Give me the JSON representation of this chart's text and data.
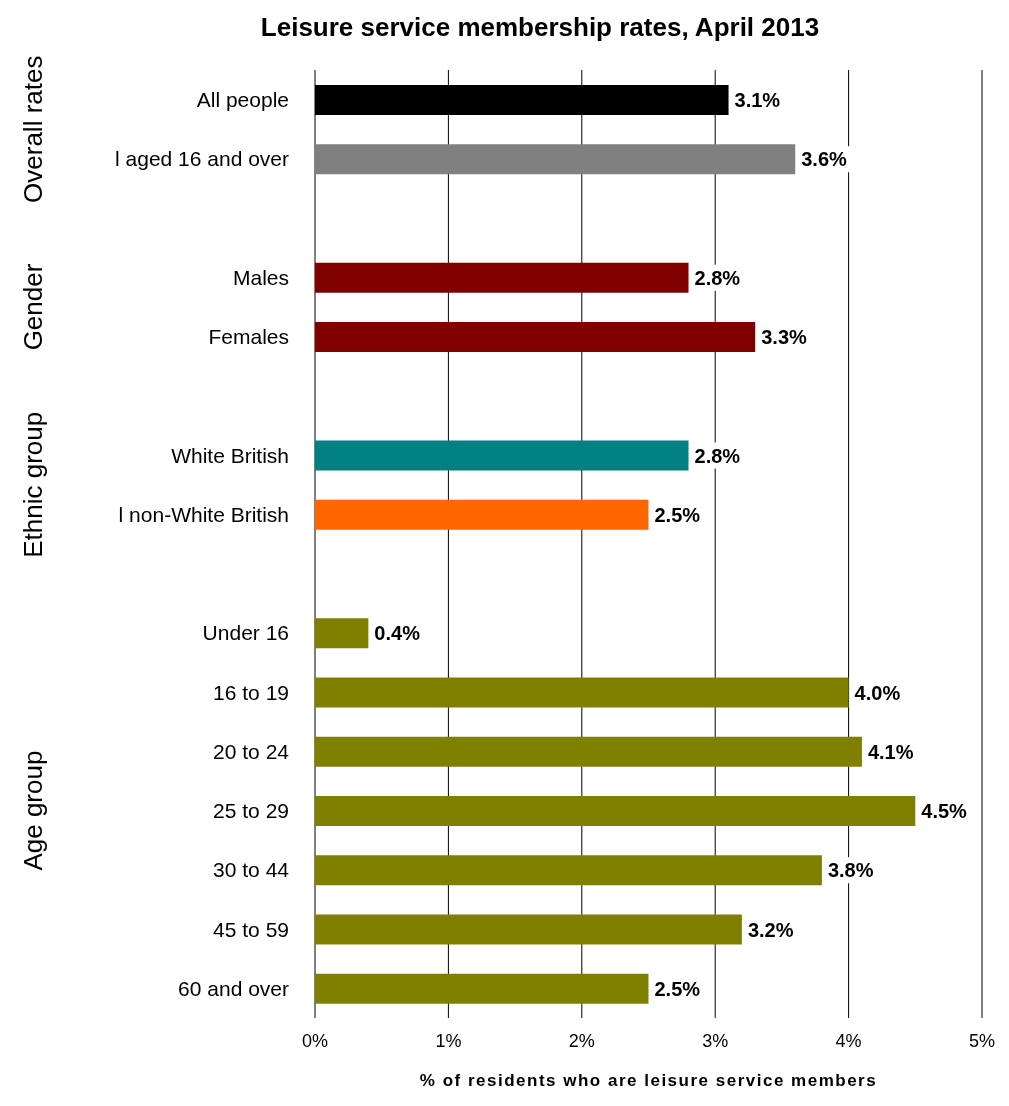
{
  "chart_data": {
    "type": "bar",
    "orientation": "horizontal",
    "title": "Leisure service membership rates, April 2013",
    "xlabel": "% of residents who are leisure service members",
    "categories": [
      "All people",
      "l aged 16 and over",
      null,
      "Males",
      "Females",
      null,
      "White British",
      "l non-White British",
      null,
      "Under 16",
      "16 to 19",
      "20 to 24",
      "25 to 29",
      "30 to 44",
      "45 to 59",
      "60 and over"
    ],
    "values": [
      3.1,
      3.6,
      null,
      2.8,
      3.3,
      null,
      2.8,
      2.5,
      null,
      0.4,
      4.0,
      4.1,
      4.5,
      3.8,
      3.2,
      2.5
    ],
    "value_labels": [
      "3.1%",
      "3.6%",
      null,
      "2.8%",
      "3.3%",
      null,
      "2.8%",
      "2.5%",
      null,
      "0.4%",
      "4.0%",
      "4.1%",
      "4.5%",
      "3.8%",
      "3.2%",
      "2.5%"
    ],
    "colors": [
      "#000000",
      "#808080",
      null,
      "#800000",
      "#800000",
      null,
      "#008080",
      "#ff6600",
      null,
      "#808000",
      "#808000",
      "#808000",
      "#808000",
      "#808000",
      "#808000",
      "#808000"
    ],
    "xlim": [
      0,
      5
    ],
    "xticks": [
      {
        "value": 0,
        "label": "0%"
      },
      {
        "value": 1,
        "label": "1%"
      },
      {
        "value": 2,
        "label": "2%"
      },
      {
        "value": 3,
        "label": "3%"
      },
      {
        "value": 4,
        "label": "4%"
      },
      {
        "value": 5,
        "label": "5%"
      }
    ],
    "grid": "x",
    "annotations": [
      "Overall rates",
      "Gender",
      "Ethnic group",
      "Age group"
    ]
  }
}
